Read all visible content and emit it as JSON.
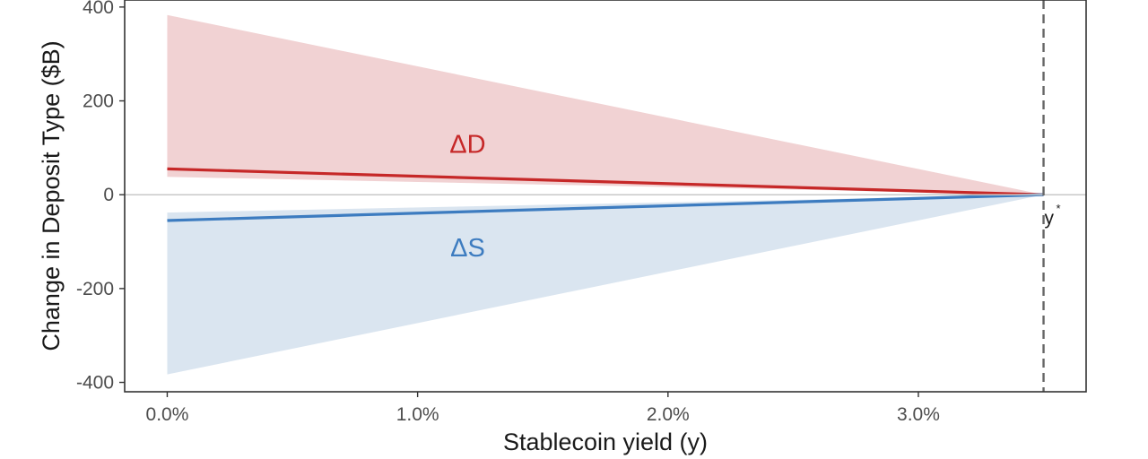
{
  "chart_data": {
    "type": "area",
    "title": "",
    "xlabel": "Stablecoin yield (y)",
    "ylabel": "Change in Deposit Type ($B)",
    "xlim": [
      -0.17,
      3.67
    ],
    "ylim": [
      -420,
      415
    ],
    "x_ticks": [
      0,
      1,
      2,
      3
    ],
    "x_tick_labels": [
      "0.0%",
      "1.0%",
      "2.0%",
      "3.0%"
    ],
    "y_ticks": [
      400,
      200,
      0,
      -200,
      -400
    ],
    "y_tick_labels": [
      "400",
      "200",
      "0",
      "-200",
      "-400"
    ],
    "grid": false,
    "zero_line": 0,
    "colors": {
      "d_line": "#c62828",
      "d_band": "#f1d2d3",
      "s_line": "#3d7cc0",
      "s_band": "#dae5f0",
      "zero_line": "#c8c8c8",
      "vline": "#666666"
    },
    "series": [
      {
        "name": "ΔD",
        "label": "ΔD",
        "label_at": {
          "x": 1.2,
          "y": 108
        },
        "x": [
          0,
          3.5
        ],
        "values": [
          55,
          0
        ],
        "lower": [
          38,
          0
        ],
        "upper": [
          383,
          0
        ]
      },
      {
        "name": "ΔS",
        "label": "ΔS",
        "label_at": {
          "x": 1.2,
          "y": -112
        },
        "x": [
          0,
          3.5
        ],
        "values": [
          -55,
          0
        ],
        "lower": [
          -383,
          0
        ],
        "upper": [
          -38,
          0
        ]
      }
    ],
    "vline": {
      "x": 3.5,
      "style": "dashed"
    },
    "annotation": {
      "text": "y",
      "sup": "*",
      "x": 3.5,
      "y": 0
    }
  }
}
